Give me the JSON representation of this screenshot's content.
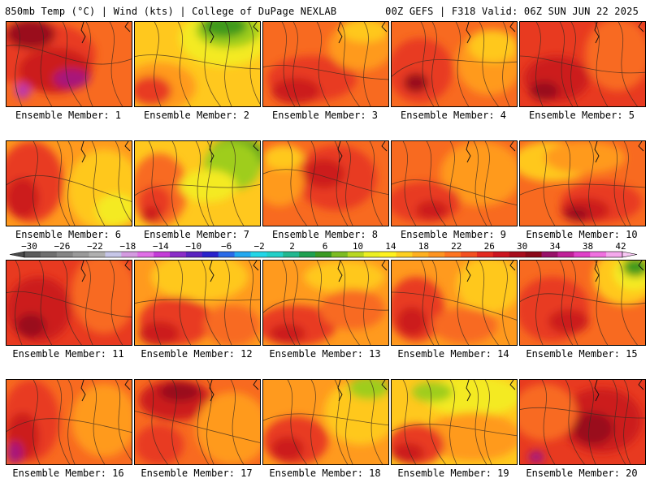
{
  "header": {
    "left": "850mb Temp (°C) | Wind (kts) | College of DuPage NEXLAB",
    "right": "00Z GEFS | F318 Valid: 06Z SUN JUN 22 2025"
  },
  "colorbar": {
    "tick_labels": [
      "−30",
      "−26",
      "−22",
      "−18",
      "−14",
      "−10",
      "−6",
      "−2",
      "2",
      "6",
      "10",
      "14",
      "18",
      "22",
      "26",
      "30",
      "34",
      "38",
      "42"
    ],
    "colors": [
      "#5b5b5b",
      "#6f6f6f",
      "#858585",
      "#9a9a9a",
      "#b0b0b0",
      "#c6c6e8",
      "#d49ae0",
      "#e06ee6",
      "#c43cd8",
      "#8a2cc8",
      "#5a22c0",
      "#2a22cc",
      "#2a6ae8",
      "#22a8f0",
      "#22d6e8",
      "#22d0c8",
      "#22b890",
      "#1ea050",
      "#3a9a22",
      "#7cbc22",
      "#b8d822",
      "#ecf022",
      "#fff21e",
      "#ffd020",
      "#ffb020",
      "#ff9420",
      "#ff7420",
      "#f45020",
      "#e42a20",
      "#cc1420",
      "#a80c1c",
      "#8a0818",
      "#981068",
      "#c02098",
      "#e040c8",
      "#f070e0",
      "#f4a8ec"
    ]
  },
  "palette": {
    "green": "#3f9a1d",
    "lightgreen": "#9fcd1e",
    "yellow": "#f4ea22",
    "gold": "#ffc81e",
    "orange": "#ff9a1e",
    "orangered": "#f86a20",
    "red": "#e83a20",
    "crimson": "#cc1a1e",
    "darkred": "#9a0f1e",
    "magenta": "#a8147a",
    "purple": "#c038a8"
  },
  "members": [
    {
      "label": "Ensemble Member: 1",
      "base": "orangered",
      "blobs": [
        [
          "red",
          40,
          40,
          70,
          40
        ],
        [
          "crimson",
          60,
          60,
          45,
          28
        ],
        [
          "darkred",
          30,
          15,
          30,
          18
        ],
        [
          "magenta",
          80,
          70,
          22,
          12
        ],
        [
          "purple",
          20,
          85,
          10,
          10
        ]
      ]
    },
    {
      "label": "Ensemble Member: 2",
      "base": "gold",
      "blobs": [
        [
          "yellow",
          110,
          20,
          55,
          35
        ],
        [
          "lightgreen",
          115,
          10,
          40,
          22
        ],
        [
          "green",
          110,
          5,
          28,
          14
        ],
        [
          "orange",
          30,
          80,
          45,
          30
        ],
        [
          "red",
          20,
          85,
          25,
          18
        ]
      ]
    },
    {
      "label": "Ensemble Member: 3",
      "base": "orangered",
      "blobs": [
        [
          "red",
          60,
          70,
          55,
          28
        ],
        [
          "crimson",
          40,
          85,
          30,
          16
        ],
        [
          "orange",
          120,
          30,
          40,
          30
        ],
        [
          "gold",
          125,
          10,
          30,
          15
        ]
      ]
    },
    {
      "label": "Ensemble Member: 4",
      "base": "orangered",
      "blobs": [
        [
          "orange",
          120,
          50,
          40,
          40
        ],
        [
          "gold",
          125,
          30,
          30,
          20
        ],
        [
          "red",
          35,
          60,
          40,
          40
        ],
        [
          "darkred",
          30,
          75,
          15,
          12
        ]
      ]
    },
    {
      "label": "Ensemble Member: 5",
      "base": "red",
      "blobs": [
        [
          "crimson",
          45,
          70,
          40,
          28
        ],
        [
          "orangered",
          120,
          40,
          40,
          45
        ],
        [
          "darkred",
          30,
          85,
          18,
          12
        ]
      ]
    },
    {
      "label": "Ensemble Member: 6",
      "base": "orange",
      "blobs": [
        [
          "red",
          30,
          50,
          40,
          50
        ],
        [
          "crimson",
          20,
          70,
          20,
          25
        ],
        [
          "gold",
          120,
          60,
          45,
          50
        ],
        [
          "yellow",
          135,
          85,
          25,
          20
        ]
      ]
    },
    {
      "label": "Ensemble Member: 7",
      "base": "gold",
      "blobs": [
        [
          "green",
          125,
          20,
          35,
          25
        ],
        [
          "lightgreen",
          120,
          30,
          35,
          30
        ],
        [
          "orangered",
          30,
          60,
          35,
          45
        ],
        [
          "red",
          25,
          75,
          20,
          20
        ],
        [
          "crimson",
          20,
          90,
          12,
          10
        ],
        [
          "yellow",
          90,
          55,
          35,
          20
        ]
      ]
    },
    {
      "label": "Ensemble Member: 8",
      "base": "orangered",
      "blobs": [
        [
          "red",
          90,
          45,
          50,
          40
        ],
        [
          "crimson",
          75,
          40,
          25,
          18
        ],
        [
          "orange",
          20,
          50,
          30,
          30
        ],
        [
          "gold",
          25,
          20,
          25,
          15
        ]
      ]
    },
    {
      "label": "Ensemble Member: 9",
      "base": "orangered",
      "blobs": [
        [
          "orange",
          110,
          40,
          50,
          40
        ],
        [
          "red",
          40,
          75,
          45,
          25
        ],
        [
          "crimson",
          50,
          85,
          20,
          12
        ]
      ]
    },
    {
      "label": "Ensemble Member: 10",
      "base": "orangered",
      "blobs": [
        [
          "gold",
          40,
          25,
          50,
          25
        ],
        [
          "orange",
          80,
          20,
          50,
          20
        ],
        [
          "red",
          100,
          75,
          50,
          25
        ],
        [
          "crimson",
          80,
          85,
          30,
          15
        ],
        [
          "darkred",
          70,
          90,
          15,
          8
        ]
      ]
    },
    {
      "label": "Ensemble Member: 11",
      "base": "red",
      "blobs": [
        [
          "orangered",
          120,
          40,
          40,
          50
        ],
        [
          "crimson",
          40,
          60,
          40,
          40
        ],
        [
          "darkred",
          30,
          80,
          18,
          15
        ]
      ]
    },
    {
      "label": "Ensemble Member: 12",
      "base": "orange",
      "blobs": [
        [
          "gold",
          80,
          20,
          60,
          30
        ],
        [
          "red",
          50,
          75,
          45,
          30
        ],
        [
          "crimson",
          30,
          90,
          25,
          15
        ],
        [
          "orangered",
          120,
          80,
          35,
          25
        ]
      ]
    },
    {
      "label": "Ensemble Member: 13",
      "base": "orange",
      "blobs": [
        [
          "gold",
          100,
          20,
          50,
          20
        ],
        [
          "red",
          40,
          80,
          50,
          25
        ],
        [
          "crimson",
          30,
          90,
          22,
          12
        ],
        [
          "orangered",
          110,
          60,
          40,
          25
        ]
      ]
    },
    {
      "label": "Ensemble Member: 14",
      "base": "orange",
      "blobs": [
        [
          "gold",
          120,
          30,
          40,
          35
        ],
        [
          "red",
          30,
          60,
          35,
          40
        ],
        [
          "crimson",
          25,
          75,
          18,
          18
        ],
        [
          "orangered",
          90,
          80,
          40,
          22
        ]
      ]
    },
    {
      "label": "Ensemble Member: 15",
      "base": "orangered",
      "blobs": [
        [
          "gold",
          130,
          20,
          40,
          35
        ],
        [
          "yellow",
          140,
          15,
          25,
          22
        ],
        [
          "green",
          142,
          8,
          16,
          12
        ],
        [
          "red",
          40,
          60,
          45,
          40
        ],
        [
          "crimson",
          60,
          75,
          25,
          15
        ]
      ]
    },
    {
      "label": "Ensemble Member: 16",
      "base": "orangered",
      "blobs": [
        [
          "red",
          30,
          50,
          35,
          50
        ],
        [
          "crimson",
          20,
          70,
          20,
          30
        ],
        [
          "magenta",
          10,
          90,
          10,
          14
        ],
        [
          "orange",
          120,
          50,
          40,
          45
        ]
      ]
    },
    {
      "label": "Ensemble Member: 17",
      "base": "orangered",
      "blobs": [
        [
          "crimson",
          50,
          25,
          45,
          25
        ],
        [
          "darkred",
          55,
          15,
          25,
          12
        ],
        [
          "orange",
          120,
          60,
          45,
          45
        ],
        [
          "red",
          30,
          80,
          30,
          25
        ]
      ]
    },
    {
      "label": "Ensemble Member: 18",
      "base": "orange",
      "blobs": [
        [
          "gold",
          120,
          40,
          45,
          40
        ],
        [
          "lightgreen",
          130,
          10,
          25,
          14
        ],
        [
          "red",
          40,
          75,
          40,
          30
        ],
        [
          "crimson",
          30,
          85,
          20,
          15
        ]
      ]
    },
    {
      "label": "Ensemble Member: 19",
      "base": "gold",
      "blobs": [
        [
          "yellow",
          100,
          20,
          60,
          25
        ],
        [
          "lightgreen",
          50,
          15,
          25,
          12
        ],
        [
          "orange",
          100,
          70,
          60,
          30
        ],
        [
          "red",
          30,
          80,
          35,
          25
        ],
        [
          "crimson",
          20,
          90,
          20,
          12
        ]
      ]
    },
    {
      "label": "Ensemble Member: 20",
      "base": "red",
      "blobs": [
        [
          "crimson",
          100,
          50,
          50,
          40
        ],
        [
          "darkred",
          90,
          60,
          25,
          20
        ],
        [
          "orangered",
          30,
          40,
          40,
          35
        ],
        [
          "magenta",
          20,
          95,
          10,
          8
        ]
      ]
    }
  ]
}
